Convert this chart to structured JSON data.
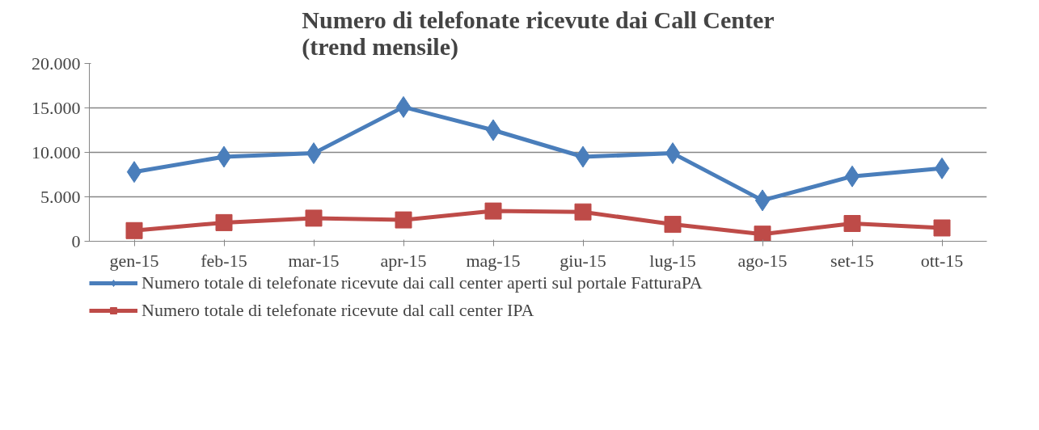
{
  "chart_data": {
    "type": "line",
    "title": "Numero di telefonate ricevute dai Call Center\n(trend mensile)",
    "categories": [
      "gen-15",
      "feb-15",
      "mar-15",
      "apr-15",
      "mag-15",
      "giu-15",
      "lug-15",
      "ago-15",
      "set-15",
      "ott-15"
    ],
    "series": [
      {
        "name": "Numero totale di telefonate ricevute dai call center aperti sul portale FatturaPA",
        "color": "#4a7ebb",
        "marker": "diamond",
        "values": [
          7800,
          9500,
          9900,
          15100,
          12500,
          9500,
          9900,
          4600,
          7300,
          8200
        ]
      },
      {
        "name": "Numero totale di telefonate ricevute dal call center IPA",
        "color": "#be4b48",
        "marker": "square",
        "values": [
          1200,
          2100,
          2600,
          2400,
          3400,
          3300,
          1900,
          800,
          2000,
          1500
        ]
      }
    ],
    "ylim": [
      0,
      20000
    ],
    "yticks": [
      {
        "value": 0,
        "label": "0"
      },
      {
        "value": 5000,
        "label": "5.000"
      },
      {
        "value": 10000,
        "label": "10.000"
      },
      {
        "value": 15000,
        "label": "15.000"
      },
      {
        "value": 20000,
        "label": "20.000"
      }
    ],
    "grid": "y",
    "legend": "bottom",
    "line_style": "solid"
  }
}
